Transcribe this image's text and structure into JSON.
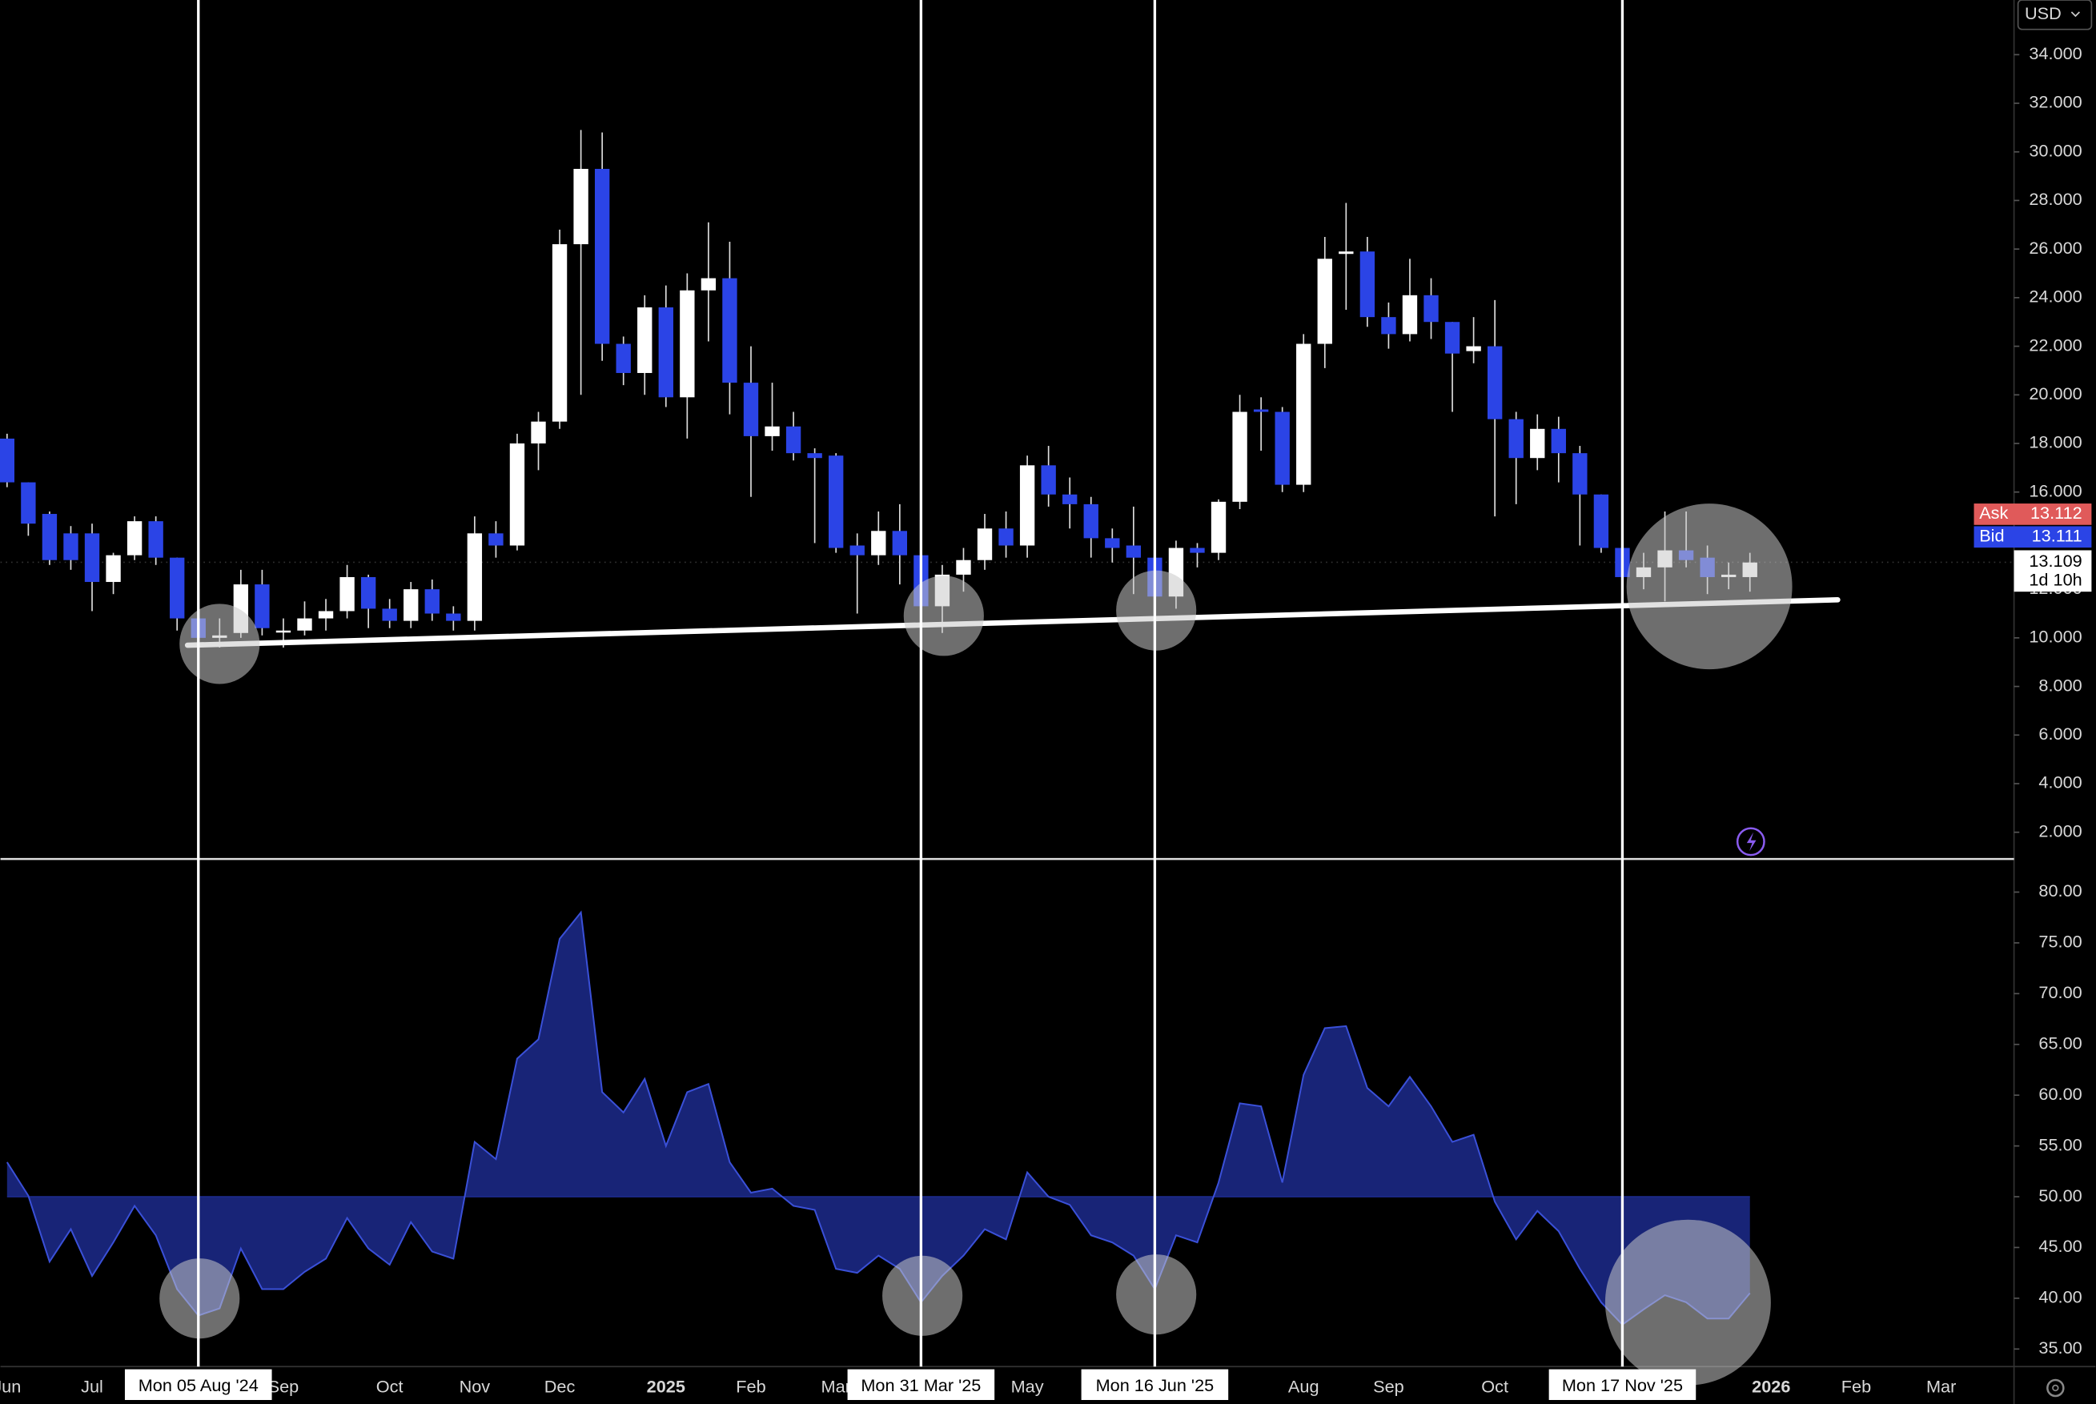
{
  "currency": "USD",
  "chart_data": [
    {
      "type": "candlestick",
      "up_color": "#ffffff",
      "down_color": "#2b44e6",
      "categories": [
        null,
        null,
        null,
        null,
        null,
        null,
        null,
        null,
        null,
        null,
        null,
        null,
        null,
        null,
        null,
        null,
        null,
        null,
        null,
        null,
        null,
        null,
        null,
        null,
        null,
        null,
        null,
        null,
        null,
        null,
        null,
        null,
        null,
        null,
        null,
        null,
        null,
        null,
        null,
        null,
        null,
        null,
        null,
        null,
        null,
        null,
        null,
        null,
        null,
        null,
        null,
        null,
        null,
        null,
        null,
        null,
        null,
        null,
        null,
        null,
        null,
        null,
        null,
        null,
        null,
        null,
        null,
        null,
        null,
        null,
        null,
        null,
        null,
        null,
        null,
        null,
        null,
        null,
        null,
        null,
        null,
        null,
        null
      ],
      "open": [
        18.2,
        16.4,
        15.1,
        14.3,
        14.3,
        12.3,
        13.4,
        14.8,
        13.3,
        10.8,
        10.0,
        10.2,
        12.2,
        10.3,
        10.3,
        10.8,
        11.1,
        12.5,
        11.2,
        10.7,
        12.0,
        11.0,
        10.7,
        14.3,
        13.8,
        18.0,
        18.9,
        26.2,
        29.3,
        22.1,
        20.9,
        23.6,
        19.9,
        24.3,
        24.8,
        20.5,
        18.3,
        18.7,
        17.6,
        17.5,
        13.8,
        13.4,
        14.4,
        13.4,
        11.3,
        12.6,
        13.2,
        14.5,
        13.8,
        17.1,
        15.9,
        15.5,
        14.1,
        13.8,
        13.3,
        11.7,
        13.7,
        13.5,
        15.6,
        19.4,
        19.3,
        16.3,
        22.1,
        25.8,
        25.9,
        23.2,
        22.5,
        24.1,
        23.0,
        21.8,
        22.0,
        19.0,
        17.4,
        18.6,
        17.6,
        15.9,
        13.7,
        12.5,
        12.9,
        13.6,
        13.3,
        12.5,
        12.5
      ],
      "high": [
        18.4,
        16.4,
        15.2,
        14.6,
        14.7,
        13.5,
        15.0,
        15.0,
        13.3,
        11.0,
        10.8,
        12.8,
        12.8,
        10.8,
        11.5,
        11.6,
        13.0,
        12.6,
        11.6,
        12.3,
        12.4,
        11.3,
        15.0,
        14.8,
        18.4,
        19.3,
        26.8,
        30.9,
        30.8,
        22.4,
        24.1,
        24.5,
        25.0,
        27.1,
        26.3,
        22.0,
        20.5,
        19.3,
        17.8,
        17.6,
        14.3,
        15.2,
        15.5,
        13.4,
        13.0,
        13.7,
        15.1,
        15.2,
        17.5,
        17.9,
        16.6,
        15.8,
        14.5,
        15.4,
        13.4,
        14.0,
        13.9,
        15.7,
        20.0,
        19.9,
        19.5,
        22.5,
        26.5,
        27.9,
        26.5,
        23.8,
        25.6,
        24.8,
        23.0,
        23.2,
        23.9,
        19.3,
        19.2,
        19.1,
        17.9,
        15.9,
        13.8,
        13.5,
        15.2,
        15.2,
        13.8,
        13.1,
        13.5
      ],
      "low": [
        16.2,
        14.2,
        13.0,
        12.8,
        11.1,
        11.8,
        13.2,
        13.0,
        10.3,
        9.7,
        9.6,
        10.0,
        10.1,
        9.6,
        10.1,
        10.3,
        10.8,
        10.4,
        10.4,
        10.4,
        10.7,
        10.3,
        10.3,
        13.3,
        13.6,
        16.9,
        18.6,
        20.0,
        21.4,
        20.4,
        20.0,
        19.5,
        18.2,
        22.2,
        19.2,
        15.8,
        17.7,
        17.3,
        13.9,
        13.5,
        11.0,
        13.0,
        12.2,
        10.6,
        10.2,
        11.9,
        12.8,
        13.3,
        13.3,
        15.4,
        14.5,
        13.3,
        13.1,
        11.8,
        11.3,
        11.2,
        12.9,
        13.2,
        15.3,
        17.7,
        16.0,
        16.0,
        21.1,
        23.5,
        22.8,
        21.9,
        22.2,
        22.3,
        19.3,
        21.3,
        15.0,
        15.5,
        16.9,
        16.4,
        13.8,
        13.5,
        12.2,
        12.0,
        11.5,
        12.9,
        11.8,
        12.0,
        11.9
      ],
      "close": [
        16.4,
        14.7,
        13.2,
        13.2,
        12.3,
        13.4,
        14.8,
        13.3,
        10.8,
        10.0,
        10.1,
        12.2,
        10.4,
        10.3,
        10.8,
        11.1,
        12.5,
        11.2,
        10.7,
        12.0,
        11.0,
        10.7,
        14.3,
        13.8,
        18.0,
        18.9,
        26.2,
        29.3,
        22.1,
        20.9,
        23.6,
        19.9,
        24.3,
        24.8,
        20.5,
        18.3,
        18.7,
        17.6,
        17.4,
        13.7,
        13.4,
        14.4,
        13.4,
        11.3,
        12.6,
        13.2,
        14.5,
        13.8,
        17.1,
        15.9,
        15.5,
        14.1,
        13.7,
        13.3,
        11.7,
        13.7,
        13.5,
        15.6,
        19.3,
        19.3,
        16.3,
        22.1,
        25.6,
        25.9,
        23.2,
        22.5,
        24.1,
        23.0,
        21.7,
        22.0,
        19.0,
        17.4,
        18.6,
        17.6,
        15.9,
        13.7,
        12.5,
        12.9,
        13.6,
        13.2,
        12.5,
        12.6,
        13.1
      ],
      "xlim": [
        -0.31,
        94.3
      ],
      "ylim": [
        0.9,
        36.25
      ],
      "yticks": [
        {
          "value": 2,
          "label": "2.000"
        },
        {
          "value": 4,
          "label": "4.000"
        },
        {
          "value": 6,
          "label": "6.000"
        },
        {
          "value": 8,
          "label": "8.000"
        },
        {
          "value": 10,
          "label": "10.000"
        },
        {
          "value": 12,
          "label": "12.000"
        },
        {
          "value": 14,
          "label": "14.000"
        },
        {
          "value": 16,
          "label": "16.000"
        },
        {
          "value": 18,
          "label": "18.000"
        },
        {
          "value": 20,
          "label": "20.000"
        },
        {
          "value": 22,
          "label": "22.000"
        },
        {
          "value": 24,
          "label": "24.000"
        },
        {
          "value": 26,
          "label": "26.000"
        },
        {
          "value": 28,
          "label": "28.000"
        },
        {
          "value": 30,
          "label": "30.000"
        },
        {
          "value": 32,
          "label": "32.000"
        },
        {
          "value": 34,
          "label": "34.000"
        }
      ],
      "xticks": [
        {
          "value": 0,
          "label": "Jun"
        },
        {
          "value": 4,
          "label": "Jul"
        },
        {
          "value": 13,
          "label": "Sep"
        },
        {
          "value": 18,
          "label": "Oct"
        },
        {
          "value": 22,
          "label": "Nov"
        },
        {
          "value": 26,
          "label": "Dec"
        },
        {
          "value": 31,
          "label": "2025"
        },
        {
          "value": 35,
          "label": "Feb"
        },
        {
          "value": 39,
          "label": "Mar"
        },
        {
          "value": 48,
          "label": "May"
        },
        {
          "value": 61,
          "label": "Aug"
        },
        {
          "value": 65,
          "label": "Sep"
        },
        {
          "value": 70,
          "label": "Oct"
        },
        {
          "value": 83,
          "label": "2026"
        },
        {
          "value": 87,
          "label": "Feb"
        },
        {
          "value": 91,
          "label": "Mar"
        }
      ],
      "crosshairs": [
        {
          "value": 9,
          "label": "Mon 05 Aug '24"
        },
        {
          "value": 43,
          "label": "Mon 31 Mar '25"
        },
        {
          "value": 54,
          "label": "Mon 16 Jun '25"
        },
        {
          "value": 76,
          "label": "Mon 17 Nov '25"
        }
      ],
      "quote": {
        "ask_label": "Ask",
        "ask": 13.112,
        "bid_label": "Bid",
        "bid": 13.111,
        "last": 13.109,
        "countdown": "1d 10h"
      }
    },
    {
      "type": "area",
      "color": "#3a50d8",
      "fill": "#1c2a8c",
      "baseline": 50,
      "categories": [
        null,
        null,
        null,
        null,
        null,
        null,
        null,
        null,
        null,
        null,
        null,
        null,
        null,
        null,
        null,
        null,
        null,
        null,
        null,
        null,
        null,
        null,
        null,
        null,
        null,
        null,
        null,
        null,
        null,
        null,
        null,
        null,
        null,
        null,
        null,
        null,
        null,
        null,
        null,
        null,
        null,
        null,
        null,
        null,
        null,
        null,
        null,
        null,
        null,
        null,
        null,
        null,
        null,
        null,
        null,
        null,
        null,
        null,
        null,
        null,
        null,
        null,
        null,
        null,
        null,
        null,
        null,
        null,
        null,
        null,
        null,
        null,
        null,
        null,
        null,
        null,
        null,
        null,
        null,
        null,
        null,
        null,
        null
      ],
      "values": [
        53.4,
        50.1,
        43.6,
        46.8,
        42.2,
        45.5,
        49.1,
        46.2,
        40.9,
        38.3,
        39.0,
        44.9,
        40.9,
        40.9,
        42.6,
        43.9,
        47.9,
        44.9,
        43.3,
        47.5,
        44.6,
        43.9,
        55.4,
        53.7,
        63.6,
        65.5,
        75.4,
        78.0,
        60.3,
        58.3,
        61.6,
        55.0,
        60.3,
        61.1,
        53.4,
        50.4,
        50.8,
        49.1,
        48.7,
        42.9,
        42.5,
        44.2,
        42.9,
        39.6,
        42.2,
        44.2,
        46.8,
        45.8,
        52.4,
        50.0,
        49.2,
        46.2,
        45.5,
        44.2,
        40.9,
        46.2,
        45.5,
        51.4,
        59.2,
        58.9,
        51.4,
        62.0,
        66.6,
        66.8,
        60.7,
        58.9,
        61.8,
        58.9,
        55.4,
        56.1,
        49.5,
        45.8,
        48.6,
        46.6,
        42.9,
        39.6,
        37.4,
        38.9,
        40.3,
        39.6,
        38.0,
        38.0,
        40.5
      ],
      "ylim": [
        33.4,
        83.0
      ],
      "yticks": [
        {
          "value": 35,
          "label": "35.00"
        },
        {
          "value": 40,
          "label": "40.00"
        },
        {
          "value": 45,
          "label": "45.00"
        },
        {
          "value": 50,
          "label": "50.00"
        },
        {
          "value": 55,
          "label": "55.00"
        },
        {
          "value": 60,
          "label": "60.00"
        },
        {
          "value": 65,
          "label": "65.00"
        },
        {
          "value": 70,
          "label": "70.00"
        },
        {
          "value": 75,
          "label": "75.00"
        },
        {
          "value": 80,
          "label": "80.00"
        }
      ]
    }
  ]
}
